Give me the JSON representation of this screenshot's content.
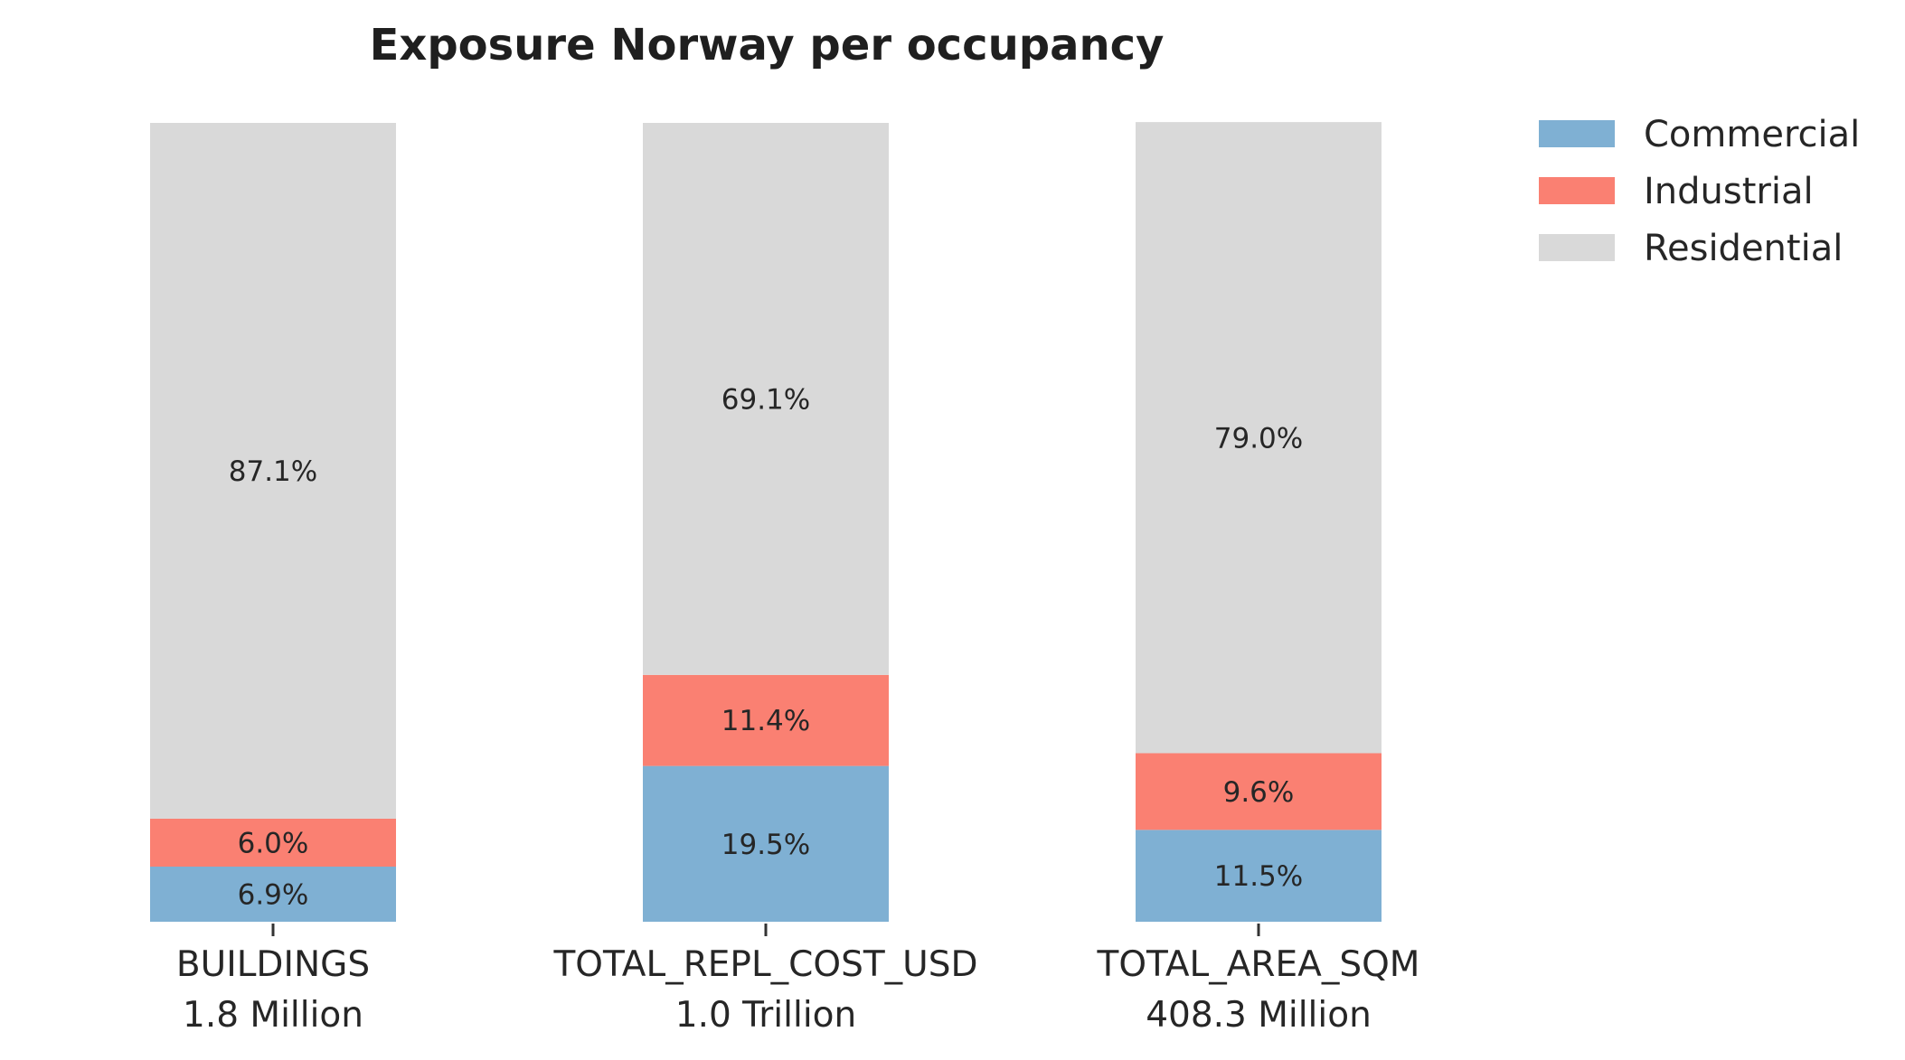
{
  "chart_data": {
    "type": "bar",
    "stacked": true,
    "normalized": true,
    "title": "Exposure Norway per occupancy",
    "xlabel": "",
    "ylabel": "",
    "ylim": [
      0,
      100
    ],
    "grid": false,
    "legend_position": "top-right",
    "categories": [
      "BUILDINGS",
      "TOTAL_REPL_COST_USD",
      "TOTAL_AREA_SQM"
    ],
    "category_totals": [
      "1.8 Million",
      "1.0 Trillion",
      "408.3 Million"
    ],
    "series": [
      {
        "name": "Commercial",
        "color": "#7fb0d3",
        "values": [
          6.9,
          19.5,
          11.5
        ],
        "labels": [
          "6.9%",
          "19.5%",
          "11.5%"
        ]
      },
      {
        "name": "Industrial",
        "color": "#fa8072",
        "values": [
          6.0,
          11.4,
          9.6
        ],
        "labels": [
          "6.0%",
          "11.4%",
          "9.6%"
        ]
      },
      {
        "name": "Residential",
        "color": "#d9d9d9",
        "values": [
          87.1,
          69.1,
          79.0
        ],
        "labels": [
          "87.1%",
          "69.1%",
          "79.0%"
        ]
      }
    ]
  }
}
